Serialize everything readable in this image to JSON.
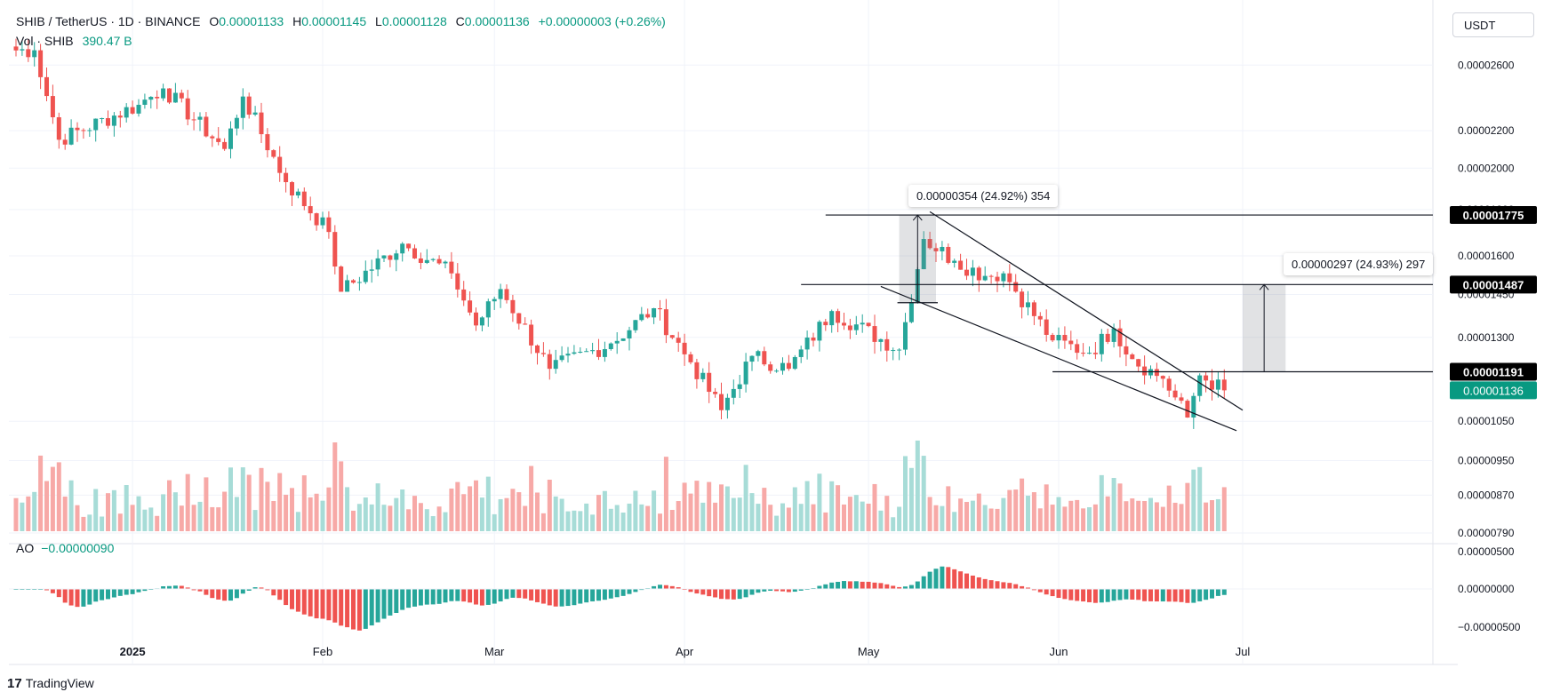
{
  "header": {
    "symbol": "SHIB / TetherUS · 1D · BINANCE",
    "open_label": "O",
    "open": "0.00001133",
    "high_label": "H",
    "high": "0.00001145",
    "low_label": "L",
    "low": "0.00001128",
    "close_label": "C",
    "close": "0.00001136",
    "change": "+0.00000003 (+0.26%)",
    "volume_label": "Vol · SHIB",
    "volume_value": "390.47 B"
  },
  "currency_button": "USDT",
  "brand": "TradingView",
  "brand_logo": "17",
  "indicator": {
    "name": "AO",
    "value": "−0.00000090"
  },
  "annotations": {
    "left_measure": "0.00000354 (24.92%) 354",
    "right_measure": "0.00000297 (24.93%) 297"
  },
  "colors": {
    "up": "#26a69a",
    "down": "#ef5350",
    "up_text": "#089981",
    "label_dark": "#000000",
    "last_price": "#089981"
  },
  "chart_data": {
    "type": "candlestick",
    "interval": "1D",
    "y_scale": "log",
    "y_range": [
      7.9e-06,
      3e-05
    ],
    "x_ticks": [
      "2025",
      "Feb",
      "Mar",
      "Apr",
      "May",
      "Jun",
      "Jul"
    ],
    "y_ticks": [
      "0.00002600",
      "0.00002200",
      "0.00002000",
      "0.00001800",
      "0.00001600",
      "0.00001450",
      "0.00001300",
      "0.00001050",
      "0.00000950",
      "0.00000870",
      "0.00000790"
    ],
    "price_labels": [
      {
        "value": "0.00001775",
        "style": "dark"
      },
      {
        "value": "0.00001487",
        "style": "dark"
      },
      {
        "value": "0.00001191",
        "style": "dark"
      },
      {
        "value": "0.00001136",
        "style": "last"
      }
    ],
    "ao_ticks": [
      "0.00000500",
      "0.00000000",
      "−0.00000500"
    ],
    "anchors": [
      {
        "date": "2024-12-16",
        "price": 2.7e-05
      },
      {
        "date": "2024-12-20",
        "price": 2.15e-05
      },
      {
        "date": "2025-01-02",
        "price": 2.35e-05
      },
      {
        "date": "2025-01-06",
        "price": 2.45e-05
      },
      {
        "date": "2025-01-16",
        "price": 2.1e-05
      },
      {
        "date": "2025-01-19",
        "price": 2.4e-05
      },
      {
        "date": "2025-01-26",
        "price": 1.93e-05
      },
      {
        "date": "2025-02-02",
        "price": 1.7e-05
      },
      {
        "date": "2025-02-04",
        "price": 1.46e-05
      },
      {
        "date": "2025-02-14",
        "price": 1.65e-05
      },
      {
        "date": "2025-02-22",
        "price": 1.53e-05
      },
      {
        "date": "2025-02-26",
        "price": 1.34e-05
      },
      {
        "date": "2025-03-02",
        "price": 1.47e-05
      },
      {
        "date": "2025-03-10",
        "price": 1.2e-05
      },
      {
        "date": "2025-03-20",
        "price": 1.28e-05
      },
      {
        "date": "2025-03-27",
        "price": 1.4e-05
      },
      {
        "date": "2025-04-02",
        "price": 1.22e-05
      },
      {
        "date": "2025-04-07",
        "price": 1.08e-05
      },
      {
        "date": "2025-04-12",
        "price": 1.24e-05
      },
      {
        "date": "2025-04-18",
        "price": 1.2e-05
      },
      {
        "date": "2025-04-25",
        "price": 1.39e-05
      },
      {
        "date": "2025-05-06",
        "price": 1.26e-05
      },
      {
        "date": "2025-05-10",
        "price": 1.67e-05
      },
      {
        "date": "2025-05-15",
        "price": 1.58e-05
      },
      {
        "date": "2025-05-20",
        "price": 1.52e-05
      },
      {
        "date": "2025-05-23",
        "price": 1.53e-05
      },
      {
        "date": "2025-05-31",
        "price": 1.29e-05
      },
      {
        "date": "2025-06-06",
        "price": 1.25e-05
      },
      {
        "date": "2025-06-10",
        "price": 1.33e-05
      },
      {
        "date": "2025-06-13",
        "price": 1.23e-05
      },
      {
        "date": "2025-06-18",
        "price": 1.17e-05
      },
      {
        "date": "2025-06-22",
        "price": 1.06e-05
      },
      {
        "date": "2025-06-24",
        "price": 1.18e-05
      },
      {
        "date": "2025-06-28",
        "price": 1.136e-05
      }
    ],
    "channel": {
      "upper": [
        [
          "2025-05-11",
          1.79e-05
        ],
        [
          "2025-07-01",
          1.08e-05
        ]
      ],
      "lower": [
        [
          "2025-05-03",
          1.48e-05
        ],
        [
          "2025-06-30",
          1.025e-05
        ]
      ]
    },
    "levels": [
      {
        "price": 1.775e-05,
        "from": "2025-04-24",
        "to": "2025-07-08"
      },
      {
        "price": 1.487e-05,
        "from": "2025-04-20",
        "to": "2025-07-08"
      },
      {
        "price": 1.191e-05,
        "from": "2025-05-31",
        "to": "2025-07-08"
      }
    ],
    "measures": [
      {
        "from_date": "2025-05-06",
        "to_date": "2025-05-12",
        "low": 1.42e-05,
        "high": 1.775e-05,
        "text": "0.00000354 (24.92%) 354"
      },
      {
        "from_date": "2025-07-01",
        "to_date": "2025-07-08",
        "low": 1.191e-05,
        "high": 1.487e-05,
        "text": "0.00000297 (24.93%) 297"
      }
    ]
  }
}
